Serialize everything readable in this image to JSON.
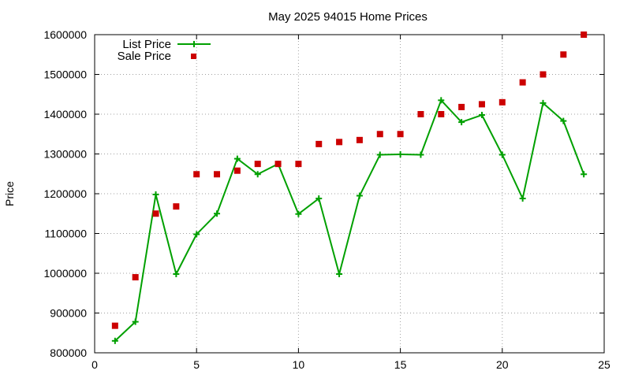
{
  "chart_data": {
    "type": "line",
    "title": "May 2025 94015 Home Prices",
    "xlabel": "",
    "ylabel": "Price",
    "xlim": [
      0,
      25
    ],
    "ylim": [
      800000,
      1600000
    ],
    "x_ticks": [
      0,
      5,
      10,
      15,
      20,
      25
    ],
    "y_ticks": [
      800000,
      900000,
      1000000,
      1100000,
      1200000,
      1300000,
      1400000,
      1500000,
      1600000
    ],
    "grid": true,
    "legend_position": "top-left",
    "series": [
      {
        "name": "List Price",
        "type": "line",
        "color": "#00a000",
        "marker": "plus",
        "x": [
          1,
          2,
          3,
          4,
          5,
          6,
          7,
          8,
          9,
          10,
          11,
          12,
          13,
          14,
          15,
          16,
          17,
          18,
          19,
          20,
          21,
          22,
          23,
          24
        ],
        "values": [
          830000,
          878000,
          1198000,
          998000,
          1098000,
          1150000,
          1288000,
          1249000,
          1275000,
          1149000,
          1188000,
          998000,
          1195000,
          1298000,
          1299000,
          1298000,
          1435000,
          1380000,
          1398000,
          1298000,
          1188000,
          1428000,
          1383000,
          1249000
        ]
      },
      {
        "name": "Sale Price",
        "type": "scatter",
        "color": "#cc0000",
        "marker": "square",
        "x": [
          1,
          2,
          3,
          4,
          5,
          6,
          7,
          8,
          9,
          10,
          11,
          12,
          13,
          14,
          15,
          16,
          17,
          18,
          19,
          20,
          21,
          22,
          23,
          24
        ],
        "values": [
          868000,
          990000,
          1150000,
          1168000,
          1249000,
          1249000,
          1258000,
          1275000,
          1275000,
          1275000,
          1325000,
          1330000,
          1335000,
          1350000,
          1350000,
          1400000,
          1400000,
          1418000,
          1425000,
          1430000,
          1480000,
          1500000,
          1550000,
          1600000
        ]
      }
    ]
  }
}
